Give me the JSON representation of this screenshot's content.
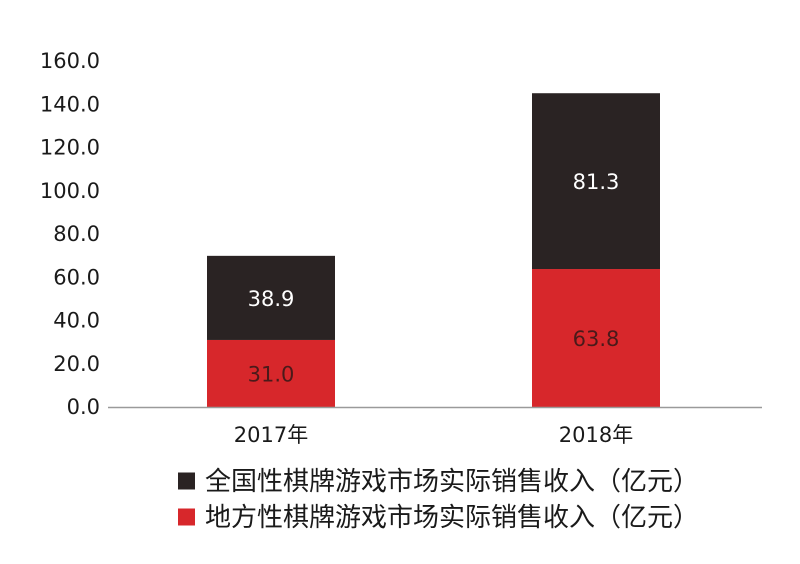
{
  "chart_data": {
    "type": "bar",
    "stacked": true,
    "categories": [
      "2017年",
      "2018年"
    ],
    "series": [
      {
        "name": "地方性棋牌游戏市场实际销售收入（亿元）",
        "values": [
          31.0,
          63.8
        ],
        "color": "#d7272b",
        "label_color": "#4a1a1a"
      },
      {
        "name": "全国性棋牌游戏市场实际销售收入（亿元）",
        "values": [
          38.9,
          81.3
        ],
        "color": "#2a2323",
        "label_color": "#ffffff"
      }
    ],
    "value_labels": [
      [
        "31.0",
        "63.8"
      ],
      [
        "38.9",
        "81.3"
      ]
    ],
    "y_ticks": [
      "0.0",
      "20.0",
      "40.0",
      "60.0",
      "80.0",
      "100.0",
      "120.0",
      "140.0",
      "160.0"
    ],
    "ylim": [
      0,
      160
    ],
    "grid": false,
    "legend_position": "bottom",
    "legend_order": [
      1,
      0
    ]
  }
}
